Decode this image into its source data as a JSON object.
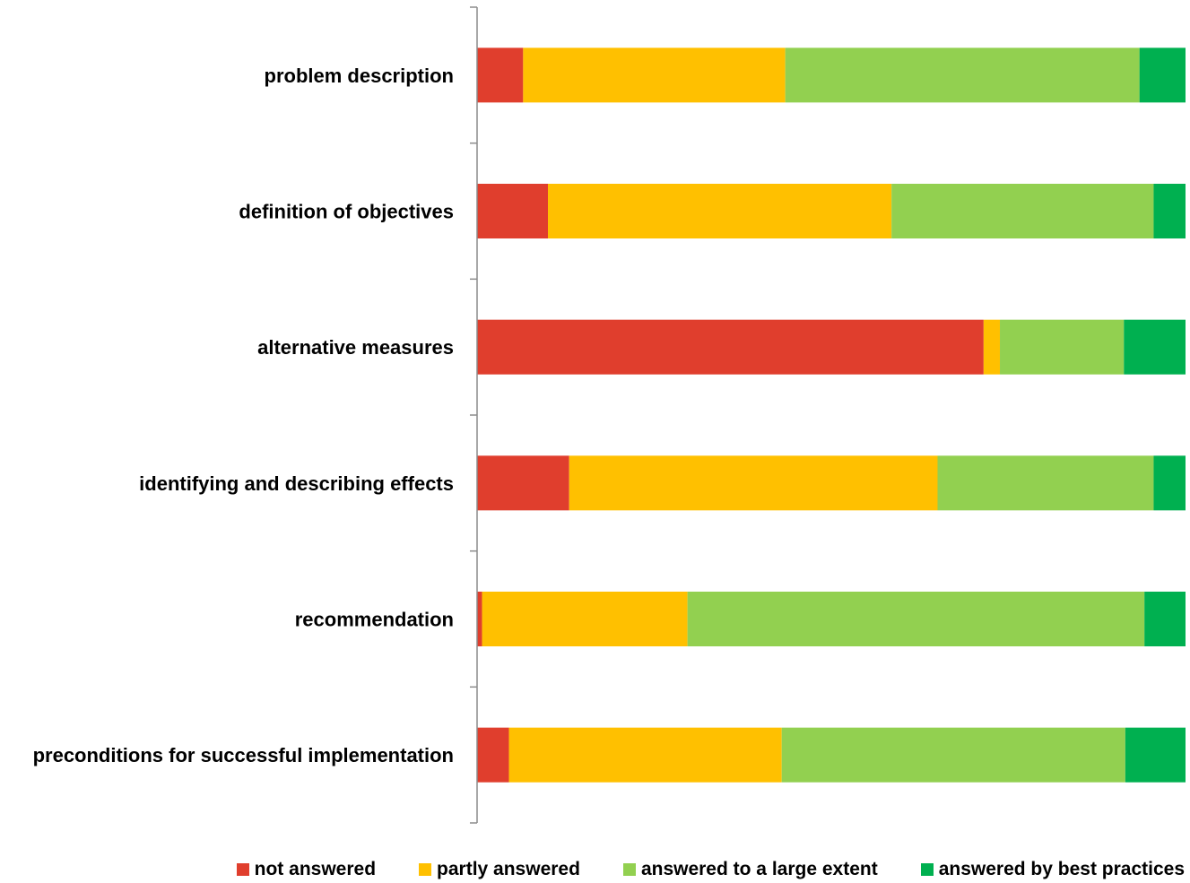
{
  "chart_data": {
    "type": "bar",
    "orientation": "horizontal",
    "stacked": "percent",
    "categories": [
      "problem description",
      "definition of objectives",
      "alternative measures",
      "identifying and describing effects",
      "recommendation",
      "preconditions for successful implementation"
    ],
    "series": [
      {
        "name": "not answered",
        "color": "#e03e2d",
        "values": [
          6.5,
          10,
          71.5,
          13,
          0.7,
          4.5
        ]
      },
      {
        "name": "partly answered",
        "color": "#ffc000",
        "values": [
          37,
          48.5,
          2.3,
          52,
          29,
          38.5
        ]
      },
      {
        "name": "answered to a large extent",
        "color": "#92d050",
        "values": [
          50,
          37,
          17.5,
          30.5,
          64.5,
          48.5
        ]
      },
      {
        "name": "answered by best practices",
        "color": "#00b050",
        "values": [
          6.5,
          4.5,
          8.7,
          4.5,
          5.8,
          8.5
        ]
      }
    ],
    "xlim": [
      0,
      100
    ],
    "grid": false,
    "legend_position": "bottom",
    "title": "",
    "xlabel": "",
    "ylabel": ""
  }
}
